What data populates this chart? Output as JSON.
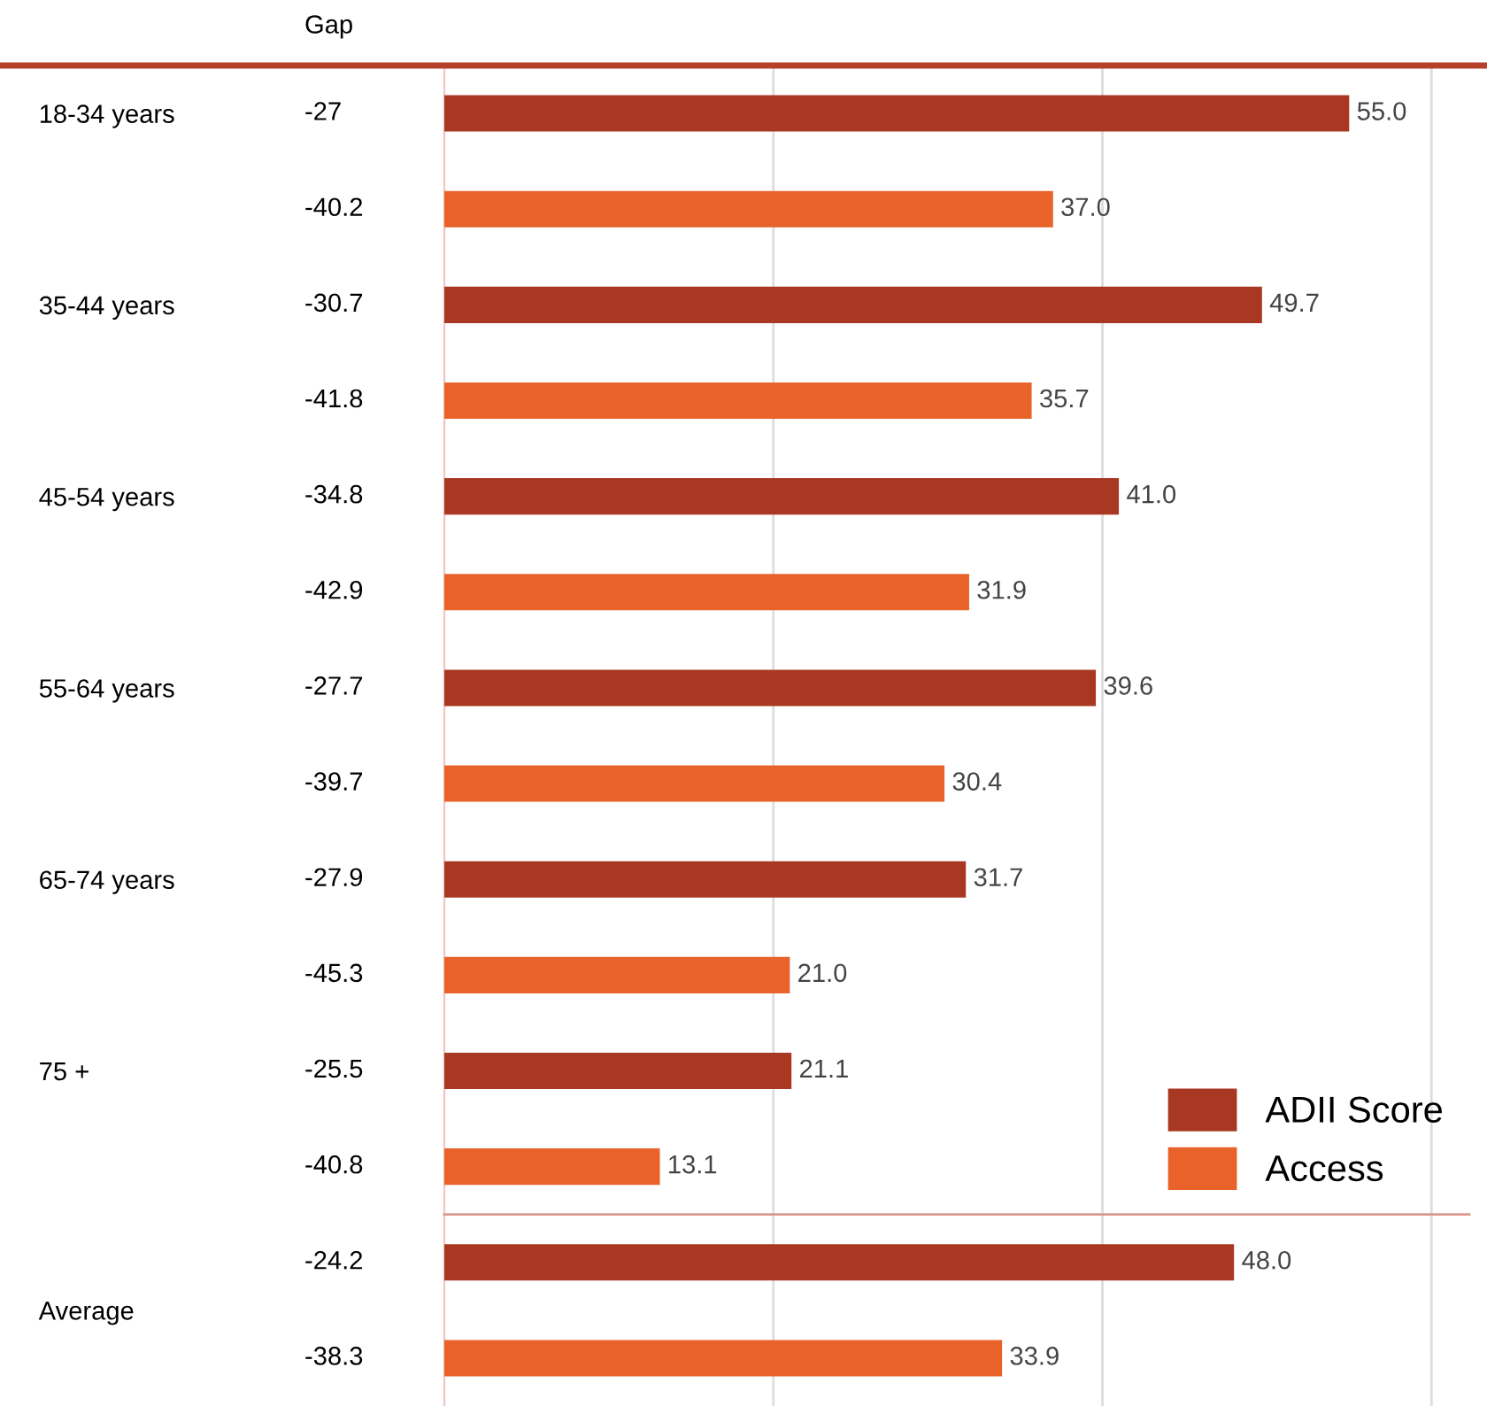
{
  "chart_data": [
    {
      "type": "bar",
      "orientation": "horizontal",
      "categories": [
        "18-34 years",
        null,
        "35-44 years",
        null,
        "45-54 years",
        null,
        "55-64 years",
        null,
        "65-74 years",
        null,
        "75 +",
        null
      ],
      "series": [
        {
          "name": "ADII Score",
          "color": "#a93823",
          "values": [
            55.0,
            null,
            49.7,
            null,
            41.0,
            null,
            39.6,
            null,
            31.7,
            null,
            21.1,
            null
          ],
          "value_labels": [
            "55.0",
            null,
            "49.7",
            null,
            "41.0",
            null,
            "39.6",
            null,
            "31.7",
            null,
            "21.1",
            null
          ]
        },
        {
          "name": "Access",
          "color": "#e8622a",
          "values": [
            null,
            37.0,
            null,
            35.7,
            null,
            31.9,
            null,
            30.4,
            null,
            21.0,
            null,
            13.1
          ],
          "value_labels": [
            null,
            "37.0",
            null,
            "35.7",
            null,
            "31.9",
            null,
            "30.4",
            null,
            "21.0",
            null,
            "13.1"
          ]
        }
      ],
      "annotations": [
        "Gap",
        "-27",
        "-40.2",
        "-30.7",
        "-41.8",
        "-34.8",
        "-42.9",
        "-27.7",
        "-39.7",
        "-27.9",
        "-45.3",
        "-25.5",
        "-40.8"
      ],
      "xlim": [
        0,
        62.3
      ],
      "xticks": [
        {
          "value": 20,
          "label": null
        },
        {
          "value": 40,
          "label": null
        },
        {
          "value": 60,
          "label": null
        }
      ],
      "tick_labels": "y",
      "grid": "x",
      "legend": "bottom right"
    },
    {
      "type": "bar",
      "orientation": "horizontal",
      "categories": [
        "Average"
      ],
      "series": [
        {
          "color": "#a93823",
          "values": [
            48.0
          ],
          "value_labels": [
            "48.0"
          ]
        },
        {
          "color": "#e8622a",
          "values": [
            33.9
          ],
          "value_labels": [
            "33.9"
          ]
        }
      ],
      "annotations": [
        "-24.2",
        "-38.3"
      ],
      "xlim": [
        0,
        62.3
      ],
      "xticks": [
        {
          "value": 20,
          "label": null
        },
        {
          "value": 40,
          "label": null
        },
        {
          "value": 60,
          "label": null
        }
      ],
      "tick_labels": "y",
      "grid": "x"
    }
  ]
}
